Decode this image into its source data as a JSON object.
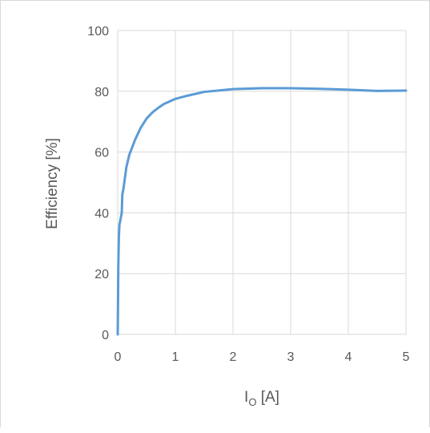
{
  "colors": {
    "series": "#5b9bd5",
    "grid": "#d9d9d9",
    "axis_text": "#595959",
    "border": "#d9d9d9"
  },
  "chart_data": {
    "type": "line",
    "title": "",
    "xlabel": {
      "main": "I",
      "subscript": "O",
      "unit": " [A]"
    },
    "ylabel": "Efficiency [%]",
    "xlim": [
      0,
      5
    ],
    "ylim": [
      0,
      100
    ],
    "x_ticks": [
      "0",
      "1",
      "2",
      "3",
      "4",
      "5"
    ],
    "y_ticks": [
      "0",
      "20",
      "40",
      "60",
      "80",
      "100"
    ],
    "grid": true,
    "legend": "none",
    "series": [
      {
        "x": [
          0,
          0.005,
          0.01,
          0.02,
          0.03,
          0.05,
          0.07,
          0.08,
          0.1,
          0.15,
          0.2,
          0.3,
          0.4,
          0.5,
          0.6,
          0.7,
          0.8,
          1.0,
          1.2,
          1.5,
          2.0,
          2.5,
          3.0,
          3.5,
          4.0,
          4.5,
          5.0
        ],
        "y": [
          0,
          10,
          22,
          32,
          36,
          38,
          40,
          46,
          48,
          55,
          59,
          64,
          68,
          71,
          73,
          74.5,
          75.8,
          77.5,
          78.5,
          79.8,
          80.7,
          81.0,
          81.0,
          80.8,
          80.5,
          80.1,
          80.2
        ]
      }
    ]
  }
}
